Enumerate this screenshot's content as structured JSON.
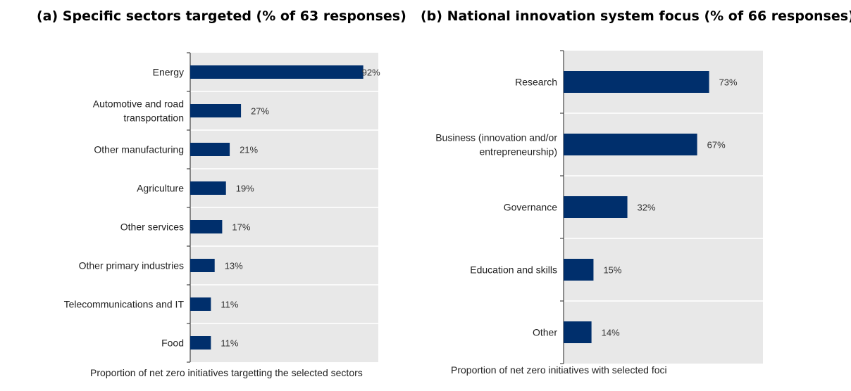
{
  "chart_data": [
    {
      "type": "bar",
      "orientation": "horizontal",
      "title": "(a) Specific sectors targeted (% of 63 responses)",
      "categories": [
        "Energy",
        "Automotive and road transportation",
        "Other manufacturing",
        "Agriculture",
        "Other services",
        "Other primary industries",
        "Telecommunications and IT",
        "Food"
      ],
      "category_lines": [
        [
          "Energy"
        ],
        [
          "Automotive and road",
          "transportation"
        ],
        [
          "Other manufacturing"
        ],
        [
          "Agriculture"
        ],
        [
          "Other services"
        ],
        [
          "Other primary industries"
        ],
        [
          "Telecommunications and IT"
        ],
        [
          "Food"
        ]
      ],
      "values": [
        92,
        27,
        21,
        19,
        17,
        13,
        11,
        11
      ],
      "labels": [
        "92%",
        "27%",
        "21%",
        "19%",
        "17%",
        "13%",
        "11%",
        "11%"
      ],
      "xlabel": "Proportion of net zero initiatives targetting the selected sectors",
      "xlim": [
        0,
        100
      ],
      "bar_color": "#002F6C",
      "background_color": "#E8E8E8"
    },
    {
      "type": "bar",
      "orientation": "horizontal",
      "title": "(b) National innovation system focus (% of 66 responses)",
      "categories": [
        "Research",
        "Business (innovation and/or entrepreneurship)",
        "Governance",
        "Education and skills",
        "Other"
      ],
      "category_lines": [
        [
          "Research"
        ],
        [
          "Business (innovation and/or",
          "entrepreneurship)"
        ],
        [
          "Governance"
        ],
        [
          "Education and skills"
        ],
        [
          "Other"
        ]
      ],
      "values": [
        73,
        67,
        32,
        15,
        14
      ],
      "labels": [
        "73%",
        "67%",
        "32%",
        "15%",
        "14%"
      ],
      "xlabel": "Proportion of net zero initiatives with selected foci",
      "xlim": [
        0,
        100
      ],
      "bar_color": "#002F6C",
      "background_color": "#E8E8E8"
    }
  ]
}
